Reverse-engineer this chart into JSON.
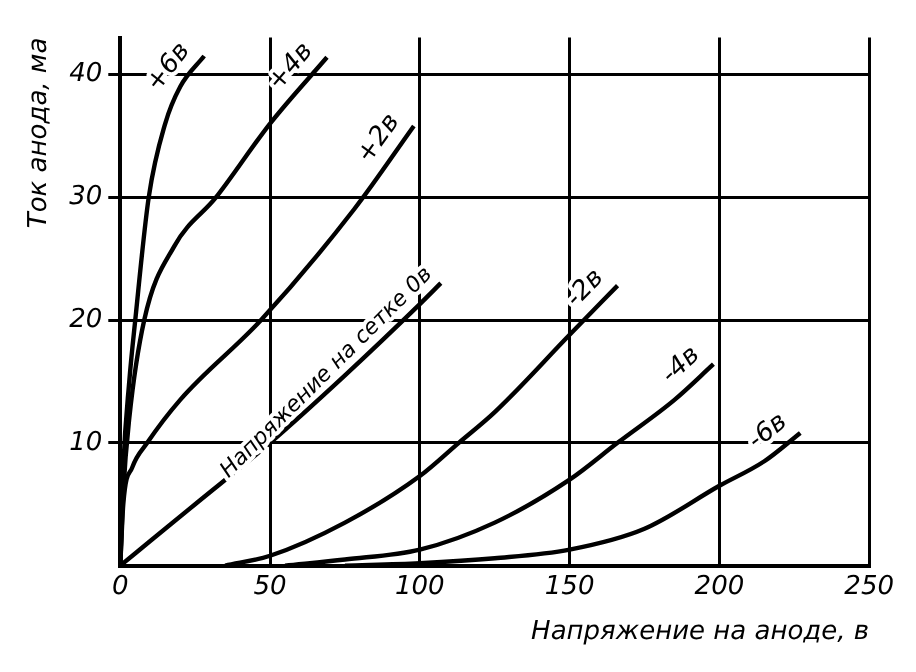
{
  "chart_data": {
    "type": "line",
    "xlabel": "Напряжение на аноде, в",
    "ylabel": "Ток анода, ма",
    "xlim": [
      0,
      250
    ],
    "ylim": [
      0,
      43
    ],
    "xticks": [
      0,
      50,
      100,
      150,
      200,
      250
    ],
    "yticks": [
      10,
      20,
      30,
      40
    ],
    "grid": true,
    "legend": false,
    "marker": "none",
    "line_style": "solid",
    "series": [
      {
        "name": "+6в",
        "color": "#000000",
        "x": [
          0,
          1,
          3,
          5,
          9.5,
          15,
          20,
          28
        ],
        "values": [
          0,
          8,
          15,
          20,
          30,
          36,
          39,
          41.5
        ]
      },
      {
        "name": "+4в",
        "color": "#000000",
        "x": [
          0,
          1,
          3,
          8,
          18,
          32,
          50,
          69
        ],
        "values": [
          0,
          6,
          12,
          20,
          26,
          30,
          36,
          41.4
        ]
      },
      {
        "name": "+2в",
        "color": "#000000",
        "x": [
          0,
          1,
          4,
          9,
          20,
          47,
          78,
          98
        ],
        "values": [
          0,
          5,
          8,
          10,
          13.5,
          20,
          29,
          35.8
        ]
      },
      {
        "name": "Напряжение на сетке 0в",
        "color": "#000000",
        "x": [
          0,
          10,
          25,
          50,
          75,
          100,
          107
        ],
        "values": [
          0,
          2,
          5,
          10,
          15.5,
          21.3,
          23
        ]
      },
      {
        "name": "-2в",
        "color": "#000000",
        "x": [
          35,
          50,
          75,
          100,
          113,
          125,
          150,
          166
        ],
        "values": [
          0,
          0.8,
          3.5,
          7.3,
          10,
          12.5,
          18.8,
          22.8
        ]
      },
      {
        "name": "-4в",
        "color": "#000000",
        "x": [
          55,
          75,
          100,
          125,
          150,
          166,
          185,
          198
        ],
        "values": [
          0,
          0.5,
          1.3,
          3.5,
          7,
          10,
          13.5,
          16.4
        ]
      },
      {
        "name": "-6в",
        "color": "#000000",
        "x": [
          75,
          100,
          125,
          150,
          175,
          200,
          215,
          227
        ],
        "values": [
          0,
          0.2,
          0.6,
          1.3,
          3,
          6.5,
          8.5,
          10.8
        ]
      }
    ]
  }
}
